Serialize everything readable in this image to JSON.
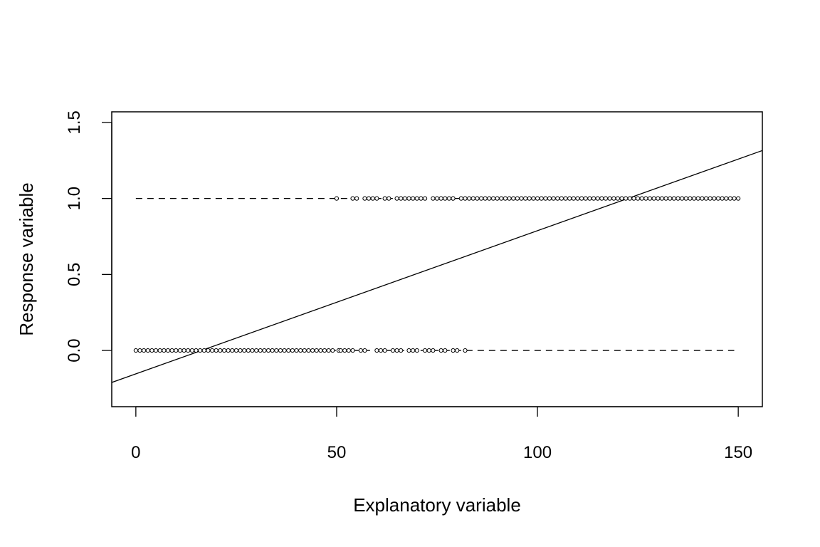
{
  "chart_data": {
    "type": "scatter",
    "title": "",
    "xlabel": "Explanatory variable",
    "ylabel": "Response variable",
    "xlim": [
      -6,
      156
    ],
    "ylim": [
      -0.37,
      1.57
    ],
    "xticks": [
      0,
      50,
      100,
      150
    ],
    "xtick_labels": [
      "0",
      "50",
      "100",
      "150"
    ],
    "yticks": [
      0.0,
      0.5,
      1.0,
      1.5
    ],
    "ytick_labels": [
      "0.0",
      "0.5",
      "1.0",
      "1.5"
    ],
    "grid": false,
    "legend": "none",
    "series": [
      {
        "values": {
          "y0_x": [
            0,
            1,
            2,
            3,
            4,
            5,
            6,
            7,
            8,
            9,
            10,
            11,
            12,
            13,
            14,
            15,
            16,
            17,
            18,
            19,
            20,
            21,
            22,
            23,
            24,
            25,
            26,
            27,
            28,
            29,
            30,
            31,
            32,
            33,
            34,
            35,
            36,
            37,
            38,
            39,
            40,
            41,
            42,
            43,
            44,
            45,
            46,
            47,
            48,
            49,
            50.5,
            51,
            52,
            53,
            54,
            56,
            57,
            60,
            61,
            62,
            64,
            65,
            66,
            68,
            69,
            70,
            72,
            73,
            74,
            76,
            77,
            79,
            80,
            82
          ],
          "y1_x": [
            50,
            54,
            55,
            57,
            58,
            59,
            60,
            62,
            63,
            65,
            66,
            67,
            68,
            69,
            70,
            71,
            72,
            74,
            75,
            76,
            77,
            78,
            79,
            81,
            82,
            83,
            84,
            85,
            86,
            87,
            88,
            89,
            90,
            91,
            92,
            93,
            94,
            95,
            96,
            97,
            98,
            99,
            100,
            101,
            102,
            103,
            104,
            105,
            106,
            107,
            108,
            109,
            110,
            111,
            112,
            113,
            114,
            115,
            116,
            117,
            118,
            119,
            120,
            121,
            122,
            123,
            124,
            125,
            126,
            127,
            128,
            129,
            130,
            131,
            132,
            133,
            134,
            135,
            136,
            137,
            138,
            139,
            140,
            141,
            142,
            143,
            144,
            145,
            146,
            147,
            148,
            149,
            150
          ]
        }
      }
    ],
    "reference_lines": [
      {
        "style": "dashed",
        "y": 0,
        "x_range": [
          0,
          149
        ]
      },
      {
        "style": "dashed",
        "y": 1,
        "x_range": [
          0,
          150
        ]
      }
    ],
    "fit_line": {
      "style": "solid",
      "intercept": -0.154,
      "slope": 0.00942
    }
  }
}
